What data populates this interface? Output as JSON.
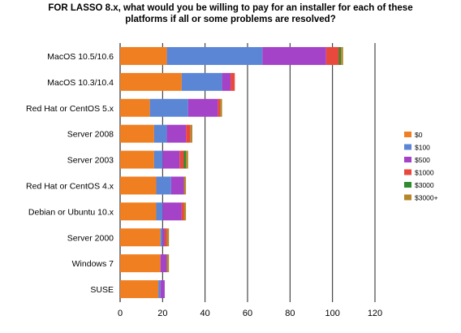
{
  "title_lines": [
    "FOR LASSO 8.x, what would you be willing to pay for an installer for each of these",
    "platforms if all or some problems are resolved?"
  ],
  "chart_data": {
    "type": "bar",
    "orientation": "horizontal",
    "stacked": true,
    "title": "FOR LASSO 8.x, what would you be willing to pay for an installer for each of these platforms if all or some problems are resolved?",
    "categories": [
      "MacOS 10.5/10.6",
      "MacOS 10.3/10.4",
      "Red Hat or CentOS 5.x",
      "Server 2008",
      "Server 2003",
      "Red Hat or CentOS 4.x",
      "Debian or Ubuntu 10.x",
      "Server 2000",
      "Windows 7",
      "SUSE"
    ],
    "series": [
      {
        "name": "$0",
        "color": "#f07f21",
        "values": [
          22,
          29,
          14,
          16,
          16,
          17,
          17,
          19,
          19,
          18
        ]
      },
      {
        "name": "$100",
        "color": "#5b86d6",
        "values": [
          45,
          19,
          18,
          6,
          4,
          7,
          3,
          1,
          0,
          1
        ]
      },
      {
        "name": "$500",
        "color": "#a442c8",
        "values": [
          30,
          4,
          14,
          9,
          8,
          6,
          9,
          1,
          3,
          2
        ]
      },
      {
        "name": "$1000",
        "color": "#e8493c",
        "values": [
          6,
          2,
          1,
          2,
          2,
          0,
          1,
          1,
          0,
          0
        ]
      },
      {
        "name": "$3000",
        "color": "#2e8b2e",
        "values": [
          1,
          0,
          0,
          0,
          1,
          0,
          0,
          0,
          0,
          0
        ]
      },
      {
        "name": "$3000+",
        "color": "#b5862a",
        "values": [
          1,
          0,
          1,
          1,
          1,
          1,
          1,
          1,
          1,
          0
        ]
      }
    ],
    "xlim": [
      0,
      120
    ],
    "xticks": [
      0,
      20,
      40,
      60,
      80,
      100,
      120
    ],
    "grid": true,
    "legend_position": "right"
  }
}
